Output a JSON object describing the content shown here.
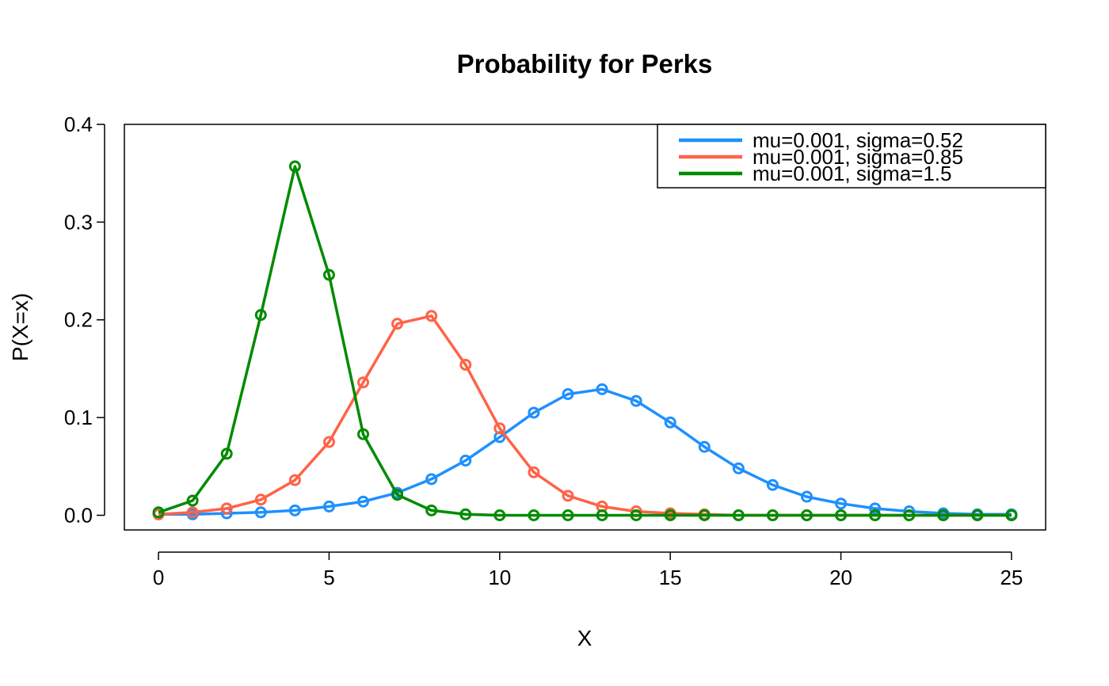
{
  "chart_data": {
    "type": "line",
    "title": "Probability for Perks",
    "xlabel": "X",
    "ylabel": "P(X=x)",
    "xlim": [
      -1,
      26
    ],
    "ylim": [
      -0.015,
      0.4
    ],
    "x_ticks": [
      0,
      5,
      10,
      15,
      20,
      25
    ],
    "y_ticks": [
      0.0,
      0.1,
      0.2,
      0.3,
      0.4
    ],
    "y_tick_labels": [
      "0.0",
      "0.1",
      "0.2",
      "0.3",
      "0.4"
    ],
    "grid": false,
    "legend_position": "top-right",
    "x": [
      0,
      1,
      2,
      3,
      4,
      5,
      6,
      7,
      8,
      9,
      10,
      11,
      12,
      13,
      14,
      15,
      16,
      17,
      18,
      19,
      20,
      21,
      22,
      23,
      24,
      25
    ],
    "series": [
      {
        "name": "mu=0.001, sigma=0.52",
        "color": "#1E90FF",
        "values": [
          0.001,
          0.001,
          0.002,
          0.003,
          0.005,
          0.009,
          0.014,
          0.023,
          0.037,
          0.056,
          0.08,
          0.105,
          0.124,
          0.129,
          0.117,
          0.095,
          0.07,
          0.048,
          0.031,
          0.019,
          0.012,
          0.007,
          0.004,
          0.002,
          0.001,
          0.001
        ]
      },
      {
        "name": "mu=0.001, sigma=0.85",
        "color": "#FF6347",
        "values": [
          0.001,
          0.003,
          0.007,
          0.016,
          0.036,
          0.075,
          0.136,
          0.196,
          0.204,
          0.154,
          0.089,
          0.044,
          0.02,
          0.009,
          0.004,
          0.002,
          0.001,
          0.0,
          0.0,
          0.0,
          0.0,
          0.0,
          0.0,
          0.0,
          0.0,
          0.0
        ]
      },
      {
        "name": "mu=0.001, sigma=1.5",
        "color": "#008B00",
        "values": [
          0.003,
          0.015,
          0.063,
          0.205,
          0.357,
          0.246,
          0.083,
          0.021,
          0.005,
          0.001,
          0.0,
          0.0,
          0.0,
          0.0,
          0.0,
          0.0,
          0.0,
          0.0,
          0.0,
          0.0,
          0.0,
          0.0,
          0.0,
          0.0,
          0.0,
          0.0
        ]
      }
    ]
  }
}
